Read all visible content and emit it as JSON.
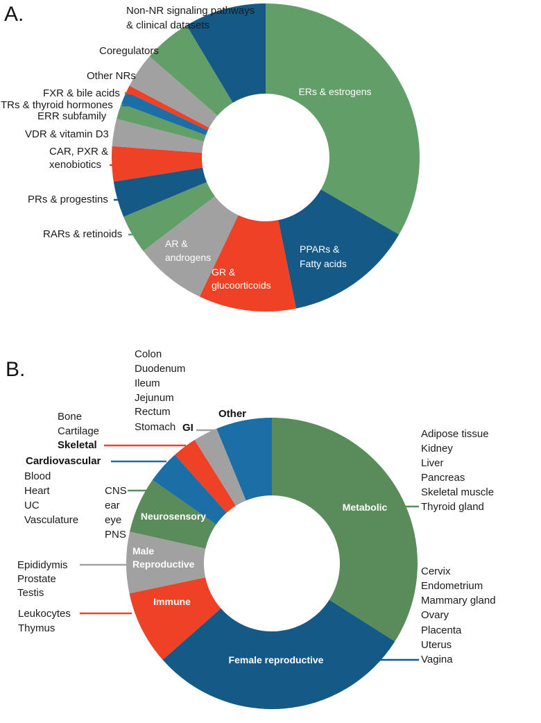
{
  "chart_data": [
    {
      "type": "pie",
      "panel_label": "A.",
      "donut": true,
      "slices": [
        {
          "label": "ERs & estrogens",
          "value": 32.6,
          "color": "#629e68"
        },
        {
          "label": "PPARs & Fatty acids",
          "value": 13.2,
          "color": "#155a87"
        },
        {
          "label": "GR & glucoorticoids",
          "value": 10.0,
          "color": "#ee4126"
        },
        {
          "label": "AR & androgens",
          "value": 7.4,
          "color": "#a1a1a1"
        },
        {
          "label": "RARs & retinoids",
          "value": 4.0,
          "color": "#629e68"
        },
        {
          "label": "PRs & progestins",
          "value": 3.7,
          "color": "#155a87"
        },
        {
          "label": "CAR, PXR & xenobiotics",
          "value": 3.6,
          "color": "#ee4126"
        },
        {
          "label": "VDR & vitamin D3",
          "value": 2.8,
          "color": "#a1a1a1"
        },
        {
          "label": "ERR subfamily",
          "value": 1.6,
          "color": "#629e68"
        },
        {
          "label": "TRs & thyroid hormones",
          "value": 1.3,
          "color": "#1b6ea6"
        },
        {
          "label": "FXR & bile acids",
          "value": 0.7,
          "color": "#ee4126"
        },
        {
          "label": "Other NRs",
          "value": 3.6,
          "color": "#a1a1a1"
        },
        {
          "label": "Coregulators",
          "value": 4.9,
          "color": "#629e68"
        },
        {
          "label": "Non-NR signaling pathways & clinical datasets",
          "value": 8.4,
          "color": "#155a87"
        }
      ]
    },
    {
      "type": "pie",
      "panel_label": "B.",
      "donut": true,
      "slices": [
        {
          "label": "Metabolic",
          "value": 34.0,
          "color": "#5a8b5b"
        },
        {
          "label": "Female reproductive",
          "value": 29.5,
          "color": "#155a87"
        },
        {
          "label": "Immune",
          "value": 8.2,
          "color": "#ee4126"
        },
        {
          "label": "Male Reproductive",
          "value": 6.8,
          "color": "#a1a1a1"
        },
        {
          "label": "Neurosensory",
          "value": 6.2,
          "color": "#5a8b5b"
        },
        {
          "label": "Cardiovascular",
          "value": 3.7,
          "color": "#1b6ea6"
        },
        {
          "label": "Skeletal",
          "value": 2.7,
          "color": "#ee4126"
        },
        {
          "label": "GI",
          "value": 2.7,
          "color": "#a1a1a1"
        },
        {
          "label": "Other",
          "value": 6.2,
          "color": "#1b6ea6"
        }
      ]
    }
  ],
  "panel_a": {
    "inner_labels": {
      "ers": "ERs & estrogens",
      "ppars_1": "PPARs &",
      "ppars_2": "Fatty acids",
      "gr_1": "GR &",
      "gr_2": "glucoorticoids",
      "ar_1": "AR &",
      "ar_2": "androgens"
    },
    "outer_labels": {
      "nonnr_1": "Non-NR signaling pathways",
      "nonnr_2": "& clinical datasets",
      "coreg": "Coregulators",
      "othernr": "Other NRs",
      "fxr": "FXR & bile acids",
      "trs": "TRs & thyroid hormones",
      "err": "ERR subfamily",
      "vdr": "VDR & vitamin D3",
      "car_1": "CAR, PXR &",
      "car_2": "xenobiotics",
      "prs": "PRs & progestins",
      "rars": "RARs & retinoids"
    }
  },
  "panel_b": {
    "inner_labels": {
      "metabolic": "Metabolic",
      "female": "Female reproductive",
      "immune": "Immune",
      "male_1": "Male",
      "male_2": "Reproductive",
      "neuro": "Neurosensory"
    },
    "category_labels": {
      "other": "Other",
      "gi": "GI",
      "skeletal": "Skeletal",
      "cardio": "Cardiovascular"
    },
    "tissue_lists": {
      "gi": [
        "Colon",
        "Duodenum",
        "Ileum",
        "Jejunum",
        "Rectum",
        "Stomach"
      ],
      "skeletal": [
        "Bone",
        "Cartilage"
      ],
      "cardio": [
        "Blood",
        "Heart",
        "UC",
        "Vasculature"
      ],
      "neuro": [
        "CNS",
        "ear",
        "eye",
        "PNS"
      ],
      "male": [
        "Epididymis",
        "Prostate",
        "Testis"
      ],
      "immune": [
        "Leukocytes",
        "Thymus"
      ],
      "metabolic": [
        "Adipose tissue",
        "Kidney",
        "Liver",
        "Pancreas",
        "Skeletal muscle",
        "Thyroid gland"
      ],
      "female": [
        "Cervix",
        "Endometrium",
        "Mammary gland",
        "Ovary",
        "Placenta",
        "Uterus",
        "Vagina"
      ]
    }
  }
}
